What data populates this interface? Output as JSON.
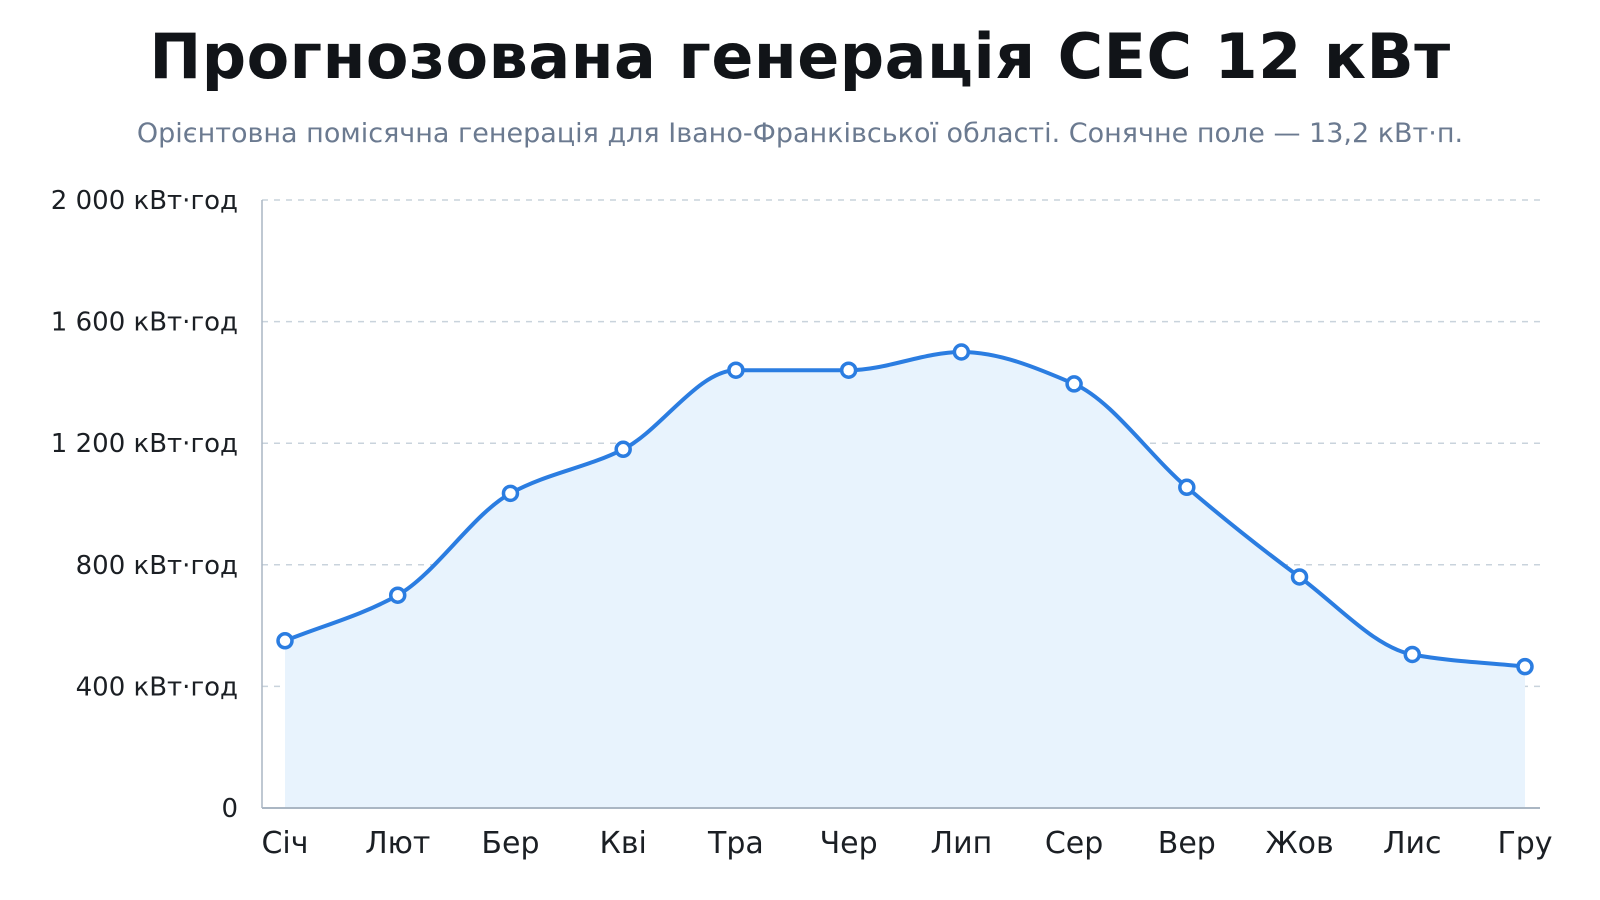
{
  "chart_data": {
    "type": "area",
    "title": "Прогнозована генерація СЕС 12 кВт",
    "subtitle": "Орієнтовна помісячна генерація для Івано-Франківської області. Сонячне поле — 13,2 кВт·п.",
    "xlabel": "",
    "ylabel": "",
    "categories": [
      "Січ",
      "Лют",
      "Бер",
      "Кві",
      "Тра",
      "Чер",
      "Лип",
      "Сер",
      "Вер",
      "Жов",
      "Лис",
      "Гру"
    ],
    "values": [
      550,
      700,
      1035,
      1180,
      1440,
      1440,
      1500,
      1395,
      1055,
      760,
      505,
      465
    ],
    "ylim": [
      0,
      2000
    ],
    "yticks": [
      0,
      400,
      800,
      1200,
      1600,
      2000
    ],
    "ytick_labels": [
      "0",
      "400 кВт·год",
      "800 кВт·год",
      "1 200 кВт·год",
      "1 600 кВт·год",
      "2 000 кВт·год"
    ],
    "grid": true,
    "legend": "none",
    "colors": {
      "line": "#2b7de1",
      "fill": "#e8f3fd",
      "grid": "#c9d3dc",
      "axis": "#aab6c3"
    }
  }
}
